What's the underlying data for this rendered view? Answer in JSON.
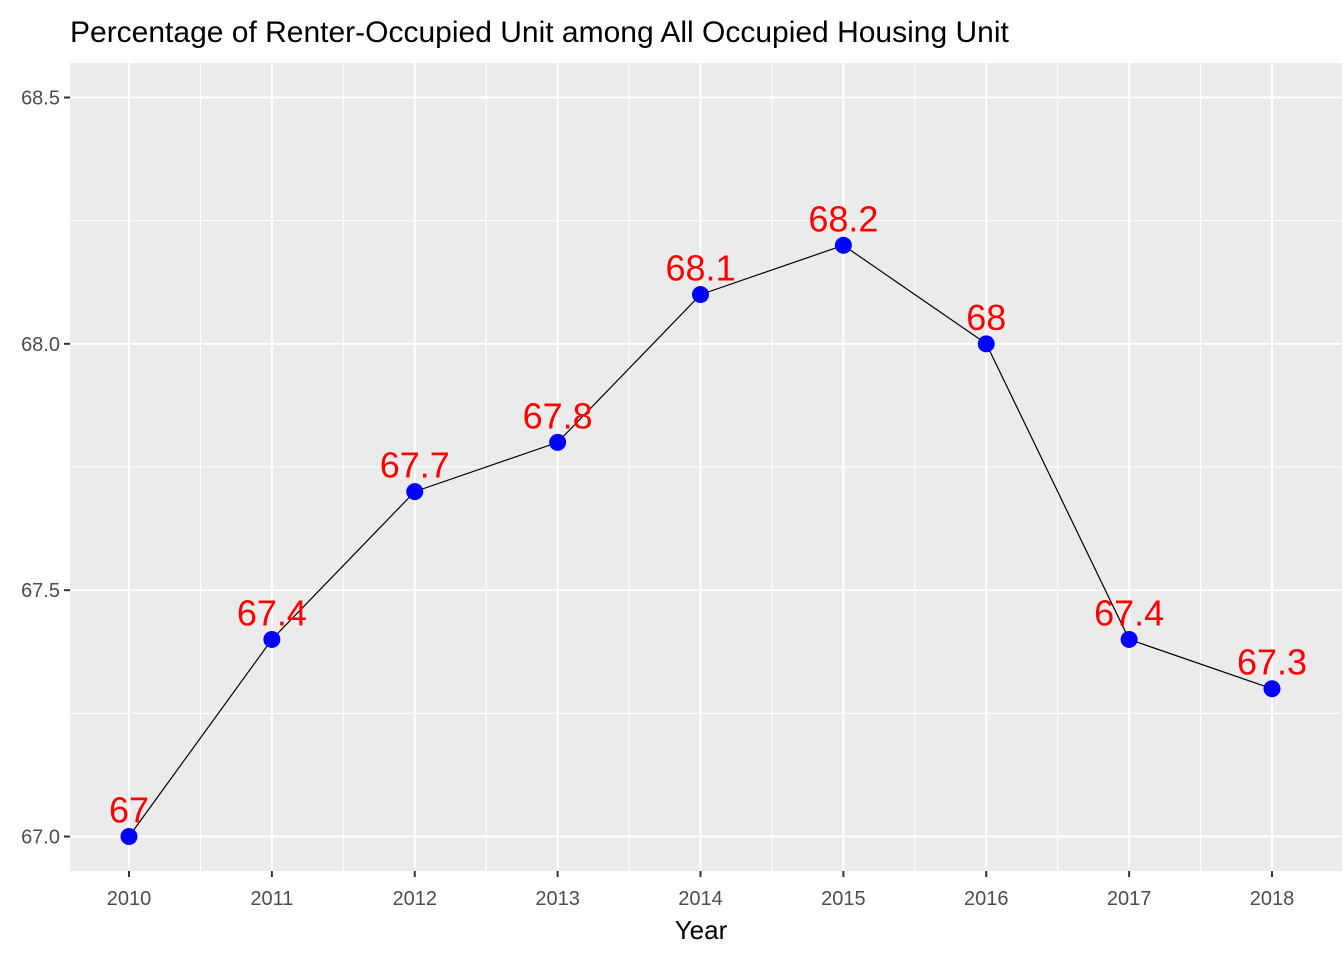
{
  "chart_data": {
    "type": "line",
    "title": "Percentage of Renter-Occupied Unit among All Occupied Housing Unit",
    "xlabel": "Year",
    "ylabel": "",
    "x": [
      "2010",
      "2011",
      "2012",
      "2013",
      "2014",
      "2015",
      "2016",
      "2017",
      "2018"
    ],
    "series": [
      {
        "values": [
          67.0,
          67.4,
          67.7,
          67.8,
          68.1,
          68.2,
          68.0,
          67.4,
          67.3
        ]
      }
    ],
    "data_labels": [
      "67",
      "67.4",
      "67.7",
      "67.8",
      "68.1",
      "68.2",
      "68",
      "67.4",
      "67.3"
    ],
    "y_ticks": [
      "67.0",
      "67.5",
      "68.0",
      "68.5"
    ],
    "ylim": [
      66.93,
      68.57
    ],
    "grid": true,
    "colors": {
      "panel_background": "#ebebeb",
      "grid": "#ffffff",
      "line": "#000000",
      "point": "#0000ff",
      "label": "#ff0000",
      "tick_text": "#4d4d4d"
    }
  }
}
